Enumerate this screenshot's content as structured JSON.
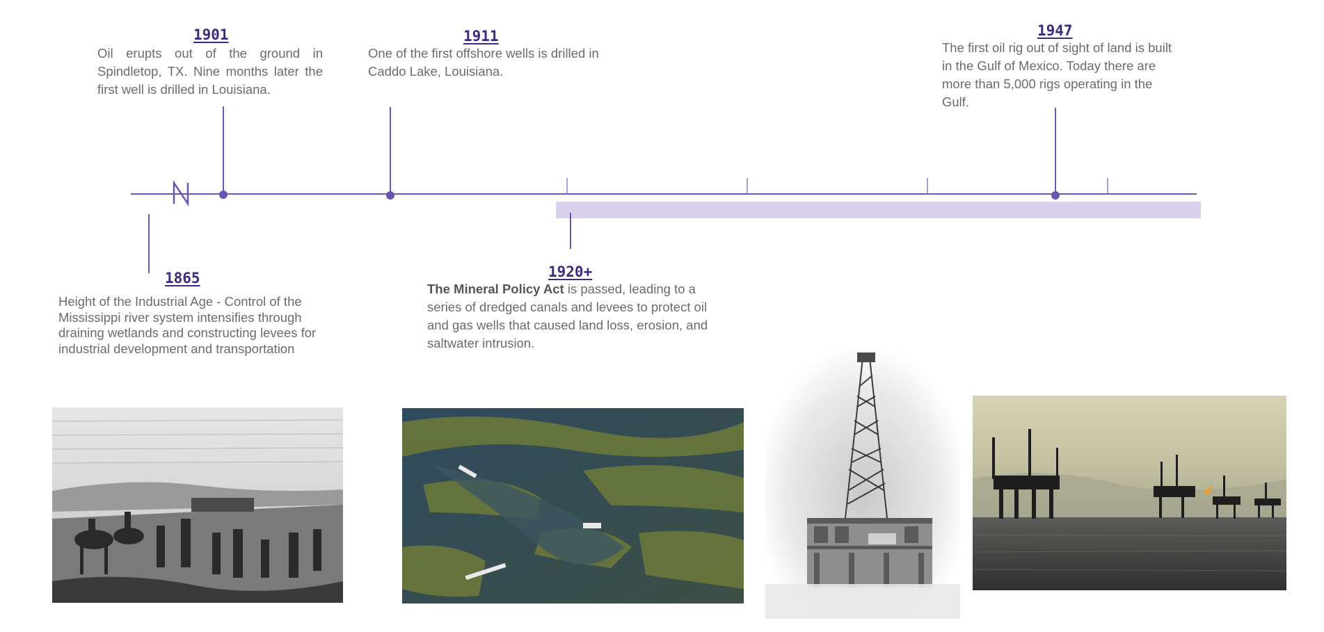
{
  "events": [
    {
      "id": "1865",
      "year": "1865",
      "text": "Height of the Industrial Age - Control of the Mississippi river system intensifies through draining wetlands and constructing  levees for industrial development and transportation"
    },
    {
      "id": "1901",
      "year": "1901",
      "text": "Oil erupts out of the ground in Spindletop, TX. Nine months later the first well is drilled in Louisiana."
    },
    {
      "id": "1911",
      "year": "1911",
      "text": "One of the first offshore wells is drilled in Caddo Lake, Louisiana."
    },
    {
      "id": "1920",
      "year": "1920+",
      "bold": "The Mineral Policy Act",
      "text": " is passed, leading to a series of dredged canals and levees to protect oil and gas wells that caused land loss, erosion, and saltwater intrusion."
    },
    {
      "id": "1947",
      "year": "1947",
      "text": "The first oil rig out of sight of land is built in the Gulf of Mexico. Today there are more than 5,000 rigs operating in the Gulf."
    }
  ],
  "colors": {
    "timeline": "#6a55b0",
    "year": "#3d2a80",
    "band": "#d9d0ec",
    "text": "#6b6b6b"
  },
  "images": [
    {
      "name": "engraving-levee-workers-image",
      "subject": "engraving of levee construction workers"
    },
    {
      "name": "aerial-canals-image",
      "subject": "aerial view of dredged canals in marsh"
    },
    {
      "name": "vintage-oil-rig-image",
      "subject": "vintage offshore oil derrick"
    },
    {
      "name": "offshore-rigs-image",
      "subject": "offshore oil rigs at sea"
    }
  ]
}
